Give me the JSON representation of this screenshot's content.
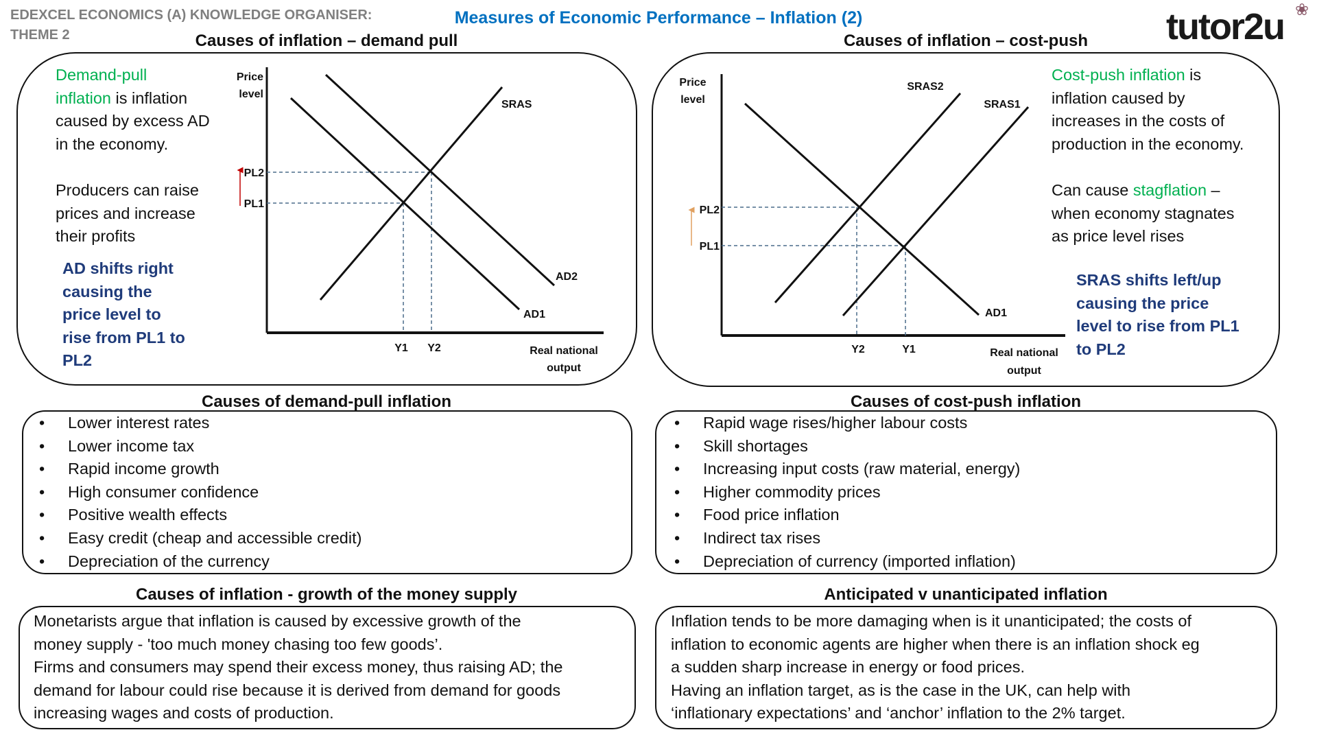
{
  "header": {
    "org_line1": "EDEXCEL ECONOMICS (A) KNOWLEDGE ORGANISER:",
    "org_line2": "THEME 2",
    "title": "Measures of Economic Performance – Inflation (2)",
    "logo": "tutor2u"
  },
  "colors": {
    "title_blue": "#0070c0",
    "green": "#00b050",
    "navy": "#1f3b7a",
    "pl_arrow_demand": "#c00000",
    "pl_arrow_cost": "#e0a060"
  },
  "demand_pull": {
    "title": "Causes of inflation – demand pull",
    "definition_lines": [
      {
        "green": "Demand-pull",
        "text": ""
      },
      {
        "green": "inflation",
        "text": " is inflation"
      },
      {
        "green": "",
        "text": "caused by excess AD"
      },
      {
        "green": "",
        "text": "in the economy."
      }
    ],
    "producers_lines": [
      "Producers can raise",
      "prices and increase",
      "their profits"
    ],
    "shift_lines": [
      "AD shifts right",
      "causing the",
      "price level to",
      "rise from PL1 to",
      "PL2"
    ],
    "diagram": {
      "y_label": [
        "Price",
        "level"
      ],
      "x_label": [
        "Real national",
        "output"
      ],
      "curves": [
        "SRAS",
        "AD2",
        "AD1"
      ],
      "price_levels": [
        "PL2",
        "PL1"
      ],
      "outputs": [
        "Y1",
        "Y2"
      ]
    }
  },
  "cost_push": {
    "title": "Causes of inflation – cost-push",
    "definition_lines": [
      {
        "green": "Cost-push inflation",
        "text": " is"
      },
      {
        "green": "",
        "text": "inflation caused by"
      },
      {
        "green": "",
        "text": "increases in the costs of"
      },
      {
        "green": "",
        "text": "production in the economy."
      }
    ],
    "stagflation_lines": [
      {
        "pre": "Can cause ",
        "green": "stagflation",
        "text": " –"
      },
      {
        "pre": "when economy stagnates",
        "green": "",
        "text": ""
      },
      {
        "pre": "as price level rises",
        "green": "",
        "text": ""
      }
    ],
    "shift_lines": [
      "SRAS shifts left/up",
      "causing the price",
      "level to rise from PL1",
      "to PL2"
    ],
    "diagram": {
      "y_label": [
        "Price",
        "level"
      ],
      "x_label": [
        "Real national",
        "output"
      ],
      "curves": [
        "SRAS2",
        "SRAS1",
        "AD1"
      ],
      "price_levels": [
        "PL2",
        "PL1"
      ],
      "outputs": [
        "Y2",
        "Y1"
      ]
    }
  },
  "demand_pull_causes": {
    "title": "Causes of demand-pull inflation",
    "bullet": "•",
    "items": [
      "Lower interest rates",
      "Lower income tax",
      "Rapid income growth",
      "High consumer confidence",
      "Positive wealth effects",
      "Easy credit (cheap and accessible credit)",
      "Depreciation of the currency"
    ]
  },
  "cost_push_causes": {
    "title": "Causes of cost-push inflation",
    "bullet": "•",
    "items": [
      "Rapid wage rises/higher labour costs",
      "Skill shortages",
      "Increasing input costs (raw material, energy)",
      "Higher commodity prices",
      "Food price inflation",
      "Indirect tax rises",
      "Depreciation of currency (imported inflation)"
    ]
  },
  "money_supply": {
    "title": "Causes of inflation - growth of the money supply",
    "lines": [
      "Monetarists argue that inflation is caused by excessive growth of the",
      "money supply - 'too much money chasing too few goods’.",
      "Firms and consumers may spend their excess money, thus raising AD; the",
      "demand for labour could rise because it is derived from demand for goods",
      "increasing wages and costs of production."
    ]
  },
  "anticipated": {
    "title": "Anticipated v unanticipated inflation",
    "lines": [
      "Inflation tends to be more damaging when is it unanticipated; the costs of",
      "inflation to economic agents are higher when there is an inflation shock eg",
      "a sudden sharp increase in energy or food prices.",
      "Having an inflation target, as is the case in the UK, can help with",
      "‘inflationary expectations’ and ‘anchor’ inflation to the 2% target."
    ]
  }
}
